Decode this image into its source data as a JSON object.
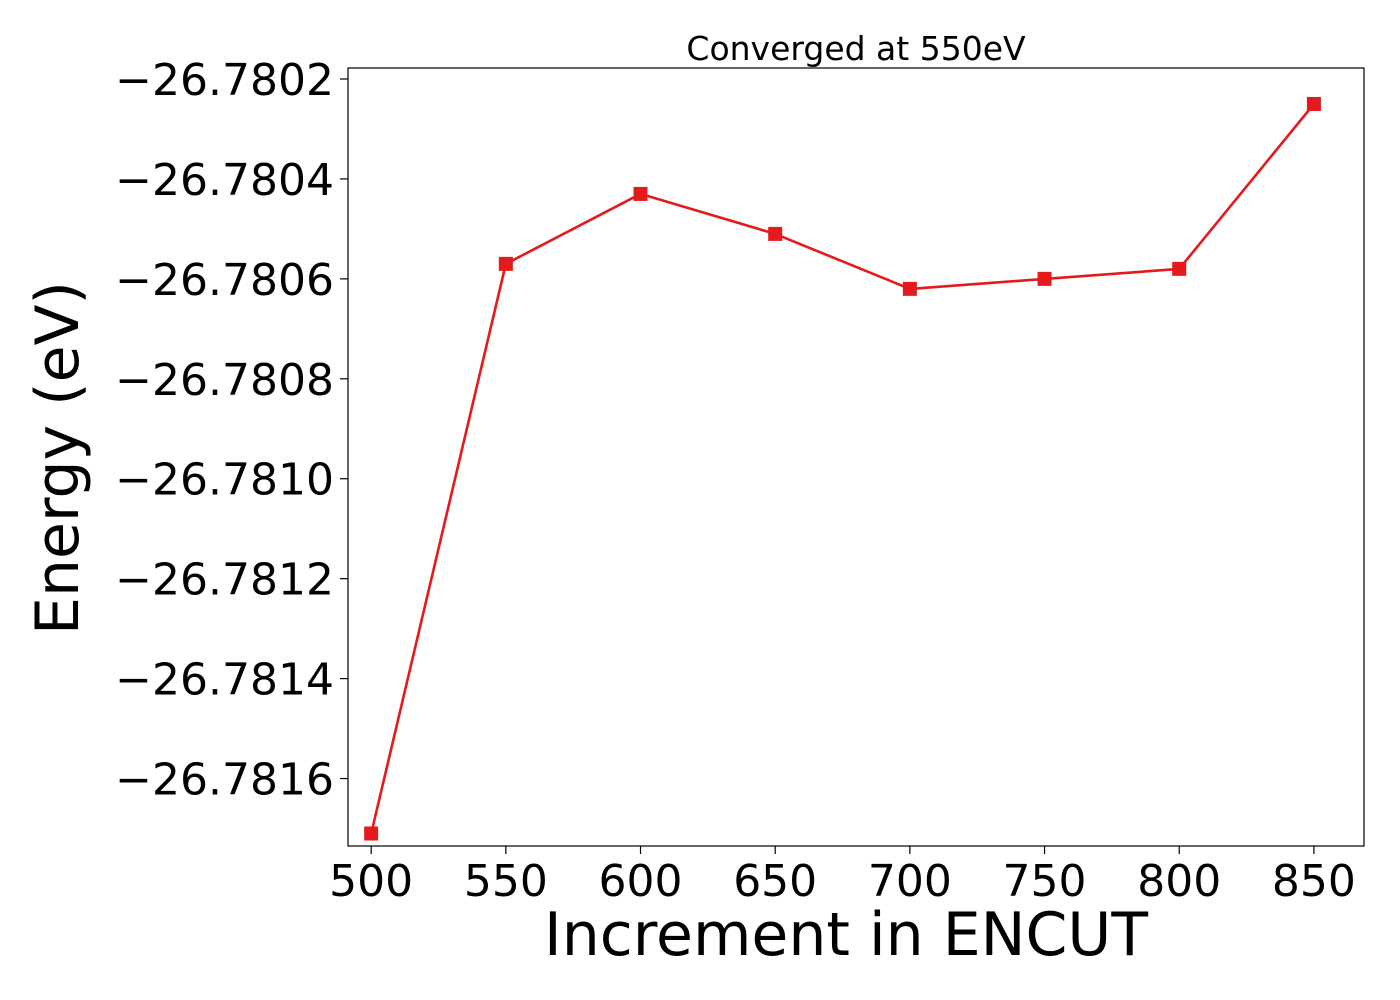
{
  "chart_data": {
    "type": "line",
    "title": "Converged at 550eV",
    "xlabel": "Increment in ENCUT",
    "ylabel": "Energy (eV)",
    "x": [
      500,
      550,
      600,
      650,
      700,
      750,
      800,
      850
    ],
    "y": [
      -26.78171,
      -26.78057,
      -26.78043,
      -26.78051,
      -26.78062,
      -26.7806,
      -26.78058,
      -26.78025
    ],
    "xticks": [
      500,
      550,
      600,
      650,
      700,
      750,
      800,
      850
    ],
    "xtick_labels": [
      "500",
      "550",
      "600",
      "650",
      "700",
      "750",
      "800",
      "850"
    ],
    "yticks": [
      -26.7802,
      -26.7804,
      -26.7806,
      -26.7808,
      -26.781,
      -26.7812,
      -26.7814,
      -26.7816
    ],
    "ytick_labels": [
      "−26.7802",
      "−26.7804",
      "−26.7806",
      "−26.7808",
      "−26.7810",
      "−26.7812",
      "−26.7814",
      "−26.7816"
    ],
    "xlim": [
      491.4,
      868.6
    ],
    "ylim": [
      -26.781735,
      -26.780178
    ],
    "grid": false,
    "line_color": "#e41a1c",
    "marker": "square"
  }
}
